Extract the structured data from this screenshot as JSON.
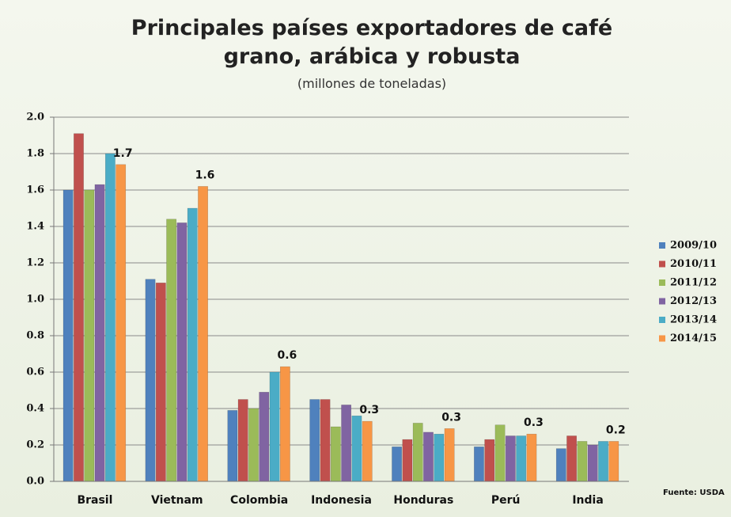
{
  "chart_data": {
    "type": "bar",
    "title": "Principales países exportadores de café grano, arábica y robusta",
    "subtitle": "(millones de toneladas)",
    "source": "Fuente: USDA",
    "categories": [
      "Brasil",
      "Vietnam",
      "Colombia",
      "Indonesia",
      "Honduras",
      "Perú",
      "India"
    ],
    "series": [
      {
        "name": "2009/10",
        "color": "#4f81bd",
        "values": [
          1.6,
          1.11,
          0.39,
          0.45,
          0.19,
          0.19,
          0.18
        ]
      },
      {
        "name": "2010/11",
        "color": "#c0504d",
        "values": [
          1.91,
          1.09,
          0.45,
          0.45,
          0.23,
          0.23,
          0.25
        ]
      },
      {
        "name": "2011/12",
        "color": "#9bbb59",
        "values": [
          1.6,
          1.44,
          0.4,
          0.3,
          0.32,
          0.31,
          0.22
        ]
      },
      {
        "name": "2012/13",
        "color": "#8064a2",
        "values": [
          1.63,
          1.42,
          0.49,
          0.42,
          0.27,
          0.25,
          0.2
        ]
      },
      {
        "name": "2013/14",
        "color": "#4bacc6",
        "values": [
          1.8,
          1.5,
          0.6,
          0.36,
          0.26,
          0.25,
          0.22
        ]
      },
      {
        "name": "2014/15",
        "color": "#f79646",
        "values": [
          1.74,
          1.62,
          0.63,
          0.33,
          0.29,
          0.26,
          0.22
        ],
        "value_labels": [
          "1.7",
          "1.6",
          "0.6",
          "0.3",
          "0.3",
          "0.3",
          "0.2"
        ]
      }
    ],
    "ylim": [
      0,
      2
    ],
    "yticks": [
      {
        "value": 0,
        "label": "0.0"
      },
      0.2,
      0.4,
      0.6,
      0.8,
      {
        "value": 1,
        "label": "1.0"
      },
      1.2,
      1.4,
      1.6,
      1.8,
      {
        "value": 2,
        "label": "2.0"
      }
    ],
    "grid": true,
    "legend": "right"
  }
}
